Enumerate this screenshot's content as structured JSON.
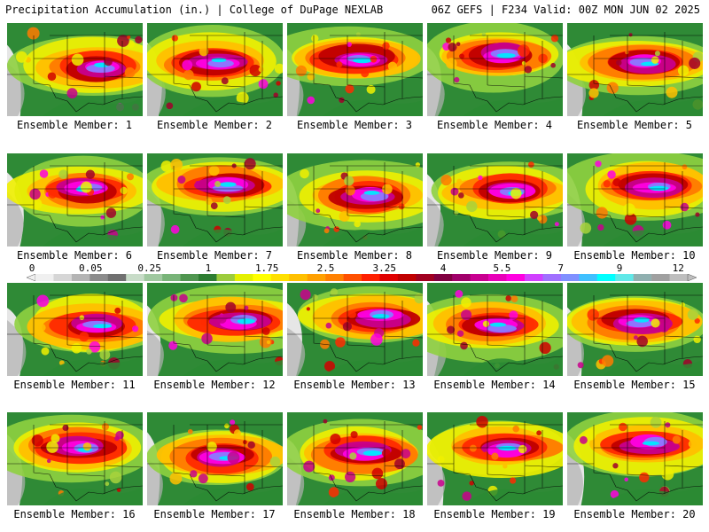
{
  "header": {
    "title_left": "Precipitation Accumulation (in.) | College of DuPage NEXLAB",
    "title_right": "06Z GEFS | F234 Valid: 00Z MON JUN 02 2025"
  },
  "colorbar": {
    "labels": [
      "0",
      "0.05",
      "0.25",
      "1",
      "1.75",
      "2.5",
      "3.25",
      "4",
      "5.5",
      "7",
      "9",
      "12"
    ],
    "colors": [
      "#f0f0f0",
      "#d6d6d6",
      "#b4b4b4",
      "#8c8c8c",
      "#707070",
      "#c8dcc8",
      "#a0c8a0",
      "#78b478",
      "#509650",
      "#2e7d32",
      "#9ccc3c",
      "#e4f000",
      "#ffff00",
      "#ffe000",
      "#ffc000",
      "#ffa000",
      "#ff8000",
      "#ff5000",
      "#ff2000",
      "#e00000",
      "#c00000",
      "#a00020",
      "#800040",
      "#a0006a",
      "#c80090",
      "#e800b8",
      "#ff00e0",
      "#d040ff",
      "#a070ff",
      "#8090ff",
      "#40c0ff",
      "#00ffff",
      "#60e8e8",
      "#90b0b0",
      "#a0a0a0",
      "#bebebe"
    ]
  },
  "members": [
    {
      "caption": "Ensemble Member: 1"
    },
    {
      "caption": "Ensemble Member: 2"
    },
    {
      "caption": "Ensemble Member: 3"
    },
    {
      "caption": "Ensemble Member: 4"
    },
    {
      "caption": "Ensemble Member: 5"
    },
    {
      "caption": "Ensemble Member: 6"
    },
    {
      "caption": "Ensemble Member: 7"
    },
    {
      "caption": "Ensemble Member: 8"
    },
    {
      "caption": "Ensemble Member: 9"
    },
    {
      "caption": "Ensemble Member: 10"
    },
    {
      "caption": "Ensemble Member: 11"
    },
    {
      "caption": "Ensemble Member: 12"
    },
    {
      "caption": "Ensemble Member: 13"
    },
    {
      "caption": "Ensemble Member: 14"
    },
    {
      "caption": "Ensemble Member: 15"
    },
    {
      "caption": "Ensemble Member: 16"
    },
    {
      "caption": "Ensemble Member: 17"
    },
    {
      "caption": "Ensemble Member: 18"
    },
    {
      "caption": "Ensemble Member: 19"
    },
    {
      "caption": "Ensemble Member: 20"
    }
  ]
}
